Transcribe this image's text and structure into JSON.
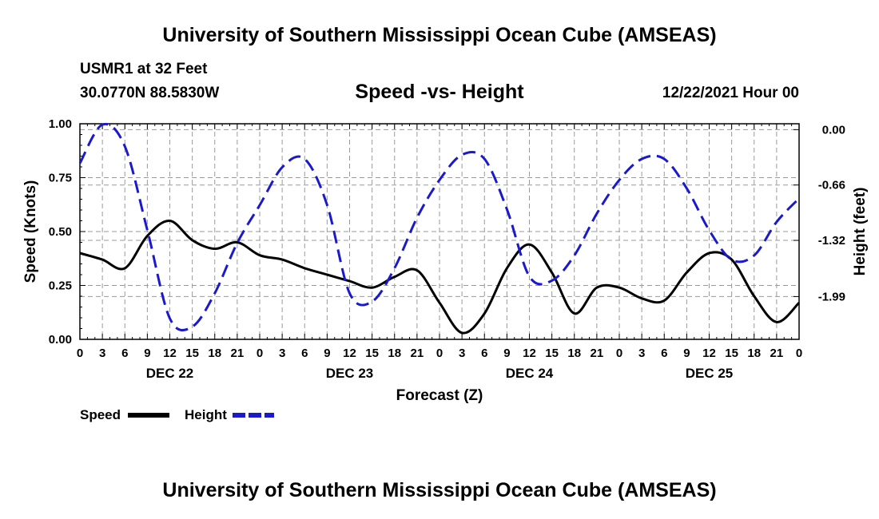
{
  "header": {
    "title": "University of Southern Mississippi Ocean Cube (AMSEAS)",
    "station": "USMR1 at 32 Feet",
    "coords": "30.0770N  88.5830W",
    "plot_title": "Speed -vs- Height",
    "datetime": "12/22/2021 Hour 00"
  },
  "footer": {
    "title": "University of Southern Mississippi Ocean Cube (AMSEAS)"
  },
  "legend": {
    "speed_label": "Speed",
    "height_label": "Height"
  },
  "colors": {
    "speed": "#000000",
    "height": "#1a1acc",
    "grid": "#9a9a9a"
  },
  "chart_data": {
    "type": "line",
    "title": "Speed -vs- Height",
    "xlabel": "Forecast (Z)",
    "ylabel": "Speed (Knots)",
    "y2label": "Height (feet)",
    "x_range": [
      0,
      96
    ],
    "x_ticks": [
      0,
      3,
      6,
      9,
      12,
      15,
      18,
      21,
      24,
      27,
      30,
      33,
      36,
      39,
      42,
      45,
      48,
      51,
      54,
      57,
      60,
      63,
      66,
      69,
      72,
      75,
      78,
      81,
      84,
      87,
      90,
      93,
      96
    ],
    "x_tick_labels": [
      "0",
      "3",
      "6",
      "9",
      "12",
      "15",
      "18",
      "21",
      "0",
      "3",
      "6",
      "9",
      "12",
      "15",
      "18",
      "21",
      "0",
      "3",
      "6",
      "9",
      "12",
      "15",
      "18",
      "21",
      "0",
      "3",
      "6",
      "9",
      "12",
      "15",
      "18",
      "21",
      "0"
    ],
    "day_labels": [
      {
        "label": "DEC 22",
        "x": 12
      },
      {
        "label": "DEC 23",
        "x": 36
      },
      {
        "label": "DEC 24",
        "x": 60
      },
      {
        "label": "DEC 25",
        "x": 84
      }
    ],
    "y_left": {
      "range": [
        0,
        1
      ],
      "ticks": [
        0,
        0.25,
        0.5,
        0.75,
        1.0
      ],
      "tick_labels": [
        "0.00",
        "0.25",
        "0.50",
        "0.75",
        "1.00"
      ]
    },
    "y_right": {
      "range": [
        -2.5,
        0.07
      ],
      "ticks": [
        0,
        -0.66,
        -1.32,
        -1.99
      ],
      "tick_labels": [
        "0.00",
        "-0.66",
        "-1.32",
        "-1.99"
      ]
    },
    "series": [
      {
        "name": "Speed",
        "axis": "left",
        "style": "solid",
        "x": [
          0,
          3,
          6,
          9,
          12,
          15,
          18,
          21,
          24,
          27,
          30,
          33,
          36,
          39,
          42,
          45,
          48,
          51,
          54,
          57,
          60,
          63,
          66,
          69,
          72,
          75,
          78,
          81,
          84,
          87,
          90,
          93,
          96
        ],
        "values": [
          0.4,
          0.37,
          0.33,
          0.48,
          0.55,
          0.46,
          0.42,
          0.45,
          0.39,
          0.37,
          0.33,
          0.3,
          0.27,
          0.24,
          0.29,
          0.32,
          0.17,
          0.03,
          0.12,
          0.33,
          0.44,
          0.31,
          0.12,
          0.24,
          0.24,
          0.19,
          0.18,
          0.31,
          0.4,
          0.37,
          0.2,
          0.08,
          0.17
        ]
      },
      {
        "name": "Height",
        "axis": "right",
        "style": "dashed",
        "x": [
          0,
          3,
          6,
          9,
          12,
          15,
          18,
          21,
          24,
          27,
          30,
          33,
          36,
          39,
          42,
          45,
          48,
          51,
          54,
          57,
          60,
          63,
          66,
          69,
          72,
          75,
          78,
          81,
          84,
          87,
          90,
          93,
          96
        ],
        "values": [
          -0.4,
          0.06,
          -0.2,
          -1.2,
          -2.25,
          -2.35,
          -1.95,
          -1.35,
          -0.9,
          -0.45,
          -0.35,
          -0.9,
          -1.95,
          -2.05,
          -1.65,
          -1.05,
          -0.6,
          -0.3,
          -0.35,
          -0.95,
          -1.75,
          -1.8,
          -1.5,
          -1.0,
          -0.6,
          -0.35,
          -0.35,
          -0.7,
          -1.2,
          -1.55,
          -1.5,
          -1.1,
          -0.82
        ]
      }
    ]
  }
}
